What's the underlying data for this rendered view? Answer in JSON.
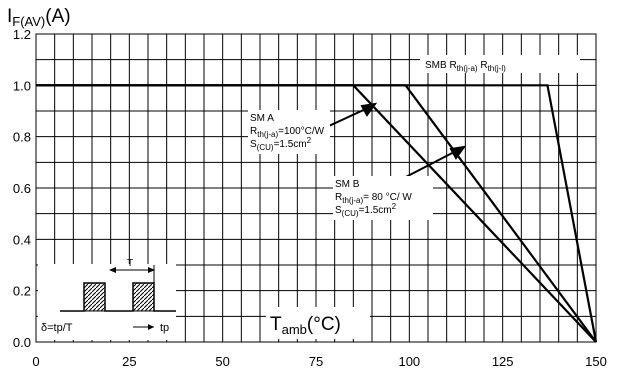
{
  "chart_data": {
    "type": "line",
    "ylabel": {
      "main": "I",
      "sub": "F(AV)",
      "unit": "(A)"
    },
    "xlabel": {
      "main": "T",
      "sub": "amb",
      "unit": "(°C)"
    },
    "xlim": [
      0,
      150
    ],
    "ylim": [
      0,
      1.2
    ],
    "x_ticks": [
      "0",
      "25",
      "50",
      "75",
      "100",
      "125",
      "150"
    ],
    "y_ticks": [
      "0.0",
      "0.2",
      "0.4",
      "0.6",
      "0.8",
      "1.0",
      "1.2"
    ],
    "grid": true,
    "series": [
      {
        "x": [
          0,
          85,
          150
        ],
        "y": [
          1.0,
          1.0,
          0.0
        ]
      },
      {
        "x": [
          0,
          99,
          150
        ],
        "y": [
          1.0,
          1.0,
          0.0
        ]
      },
      {
        "x": [
          0,
          137,
          150
        ],
        "y": [
          1.0,
          1.0,
          0.0
        ]
      }
    ],
    "annotations": {
      "smb": {
        "text": "SMB R",
        "sub1": "th(j-a)",
        "mid": " R",
        "sub2": "th(j-l)"
      },
      "sma": {
        "l1": "SM A",
        "l2a": "R",
        "l2s": "th(j-a)",
        "l2b": "=100°C/W",
        "l3a": "S",
        "l3s": "(CU)",
        "l3b": "=1.5cm",
        "l3p": "2"
      },
      "smbb": {
        "l1": "SM B",
        "l2a": "R",
        "l2s": "th(j-a)",
        "l2b": "= 80 °C/  W",
        "l3a": "S",
        "l3s": "(CU)",
        "l3b": "=1.5cm",
        "l3p": "2"
      },
      "inset": {
        "T": "T",
        "delta": "δ=tp/T",
        "tp": "tp"
      }
    }
  }
}
